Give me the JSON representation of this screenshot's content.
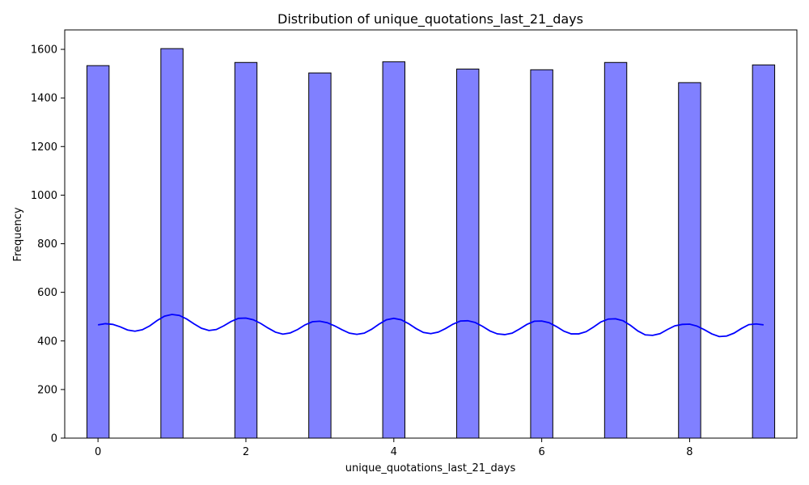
{
  "chart_data": {
    "type": "bar",
    "title": "Distribution of unique_quotations_last_21_days",
    "xlabel": "unique_quotations_last_21_days",
    "ylabel": "Frequency",
    "xlim": [
      -0.45,
      9.45
    ],
    "ylim": [
      0,
      1680
    ],
    "x_ticks": [
      0,
      2,
      4,
      6,
      8
    ],
    "y_ticks": [
      0,
      200,
      400,
      600,
      800,
      1000,
      1200,
      1400,
      1600
    ],
    "bar_width": 0.3,
    "bars": [
      {
        "x": 0,
        "value": 1533
      },
      {
        "x": 1,
        "value": 1603
      },
      {
        "x": 2,
        "value": 1546
      },
      {
        "x": 3,
        "value": 1503
      },
      {
        "x": 4,
        "value": 1549
      },
      {
        "x": 5,
        "value": 1519
      },
      {
        "x": 6,
        "value": 1516
      },
      {
        "x": 7,
        "value": 1546
      },
      {
        "x": 8,
        "value": 1463
      },
      {
        "x": 9,
        "value": 1536
      }
    ],
    "kde": {
      "x": [
        0,
        0.1,
        0.2,
        0.3,
        0.4,
        0.5,
        0.6,
        0.7,
        0.8,
        0.9,
        1.0,
        1.1,
        1.2,
        1.3,
        1.4,
        1.5,
        1.6,
        1.7,
        1.8,
        1.9,
        2.0,
        2.1,
        2.2,
        2.3,
        2.4,
        2.5,
        2.6,
        2.7,
        2.8,
        2.9,
        3.0,
        3.1,
        3.2,
        3.3,
        3.4,
        3.5,
        3.6,
        3.7,
        3.8,
        3.9,
        4.0,
        4.1,
        4.2,
        4.3,
        4.4,
        4.5,
        4.6,
        4.7,
        4.8,
        4.9,
        5.0,
        5.1,
        5.2,
        5.3,
        5.4,
        5.5,
        5.6,
        5.7,
        5.8,
        5.9,
        6.0,
        6.1,
        6.2,
        6.3,
        6.4,
        6.5,
        6.6,
        6.7,
        6.8,
        6.9,
        7.0,
        7.1,
        7.2,
        7.3,
        7.4,
        7.5,
        7.6,
        7.7,
        7.8,
        7.9,
        8.0,
        8.1,
        8.2,
        8.3,
        8.4,
        8.5,
        8.6,
        8.7,
        8.8,
        8.9,
        9.0
      ],
      "y": [
        466,
        471,
        468,
        458,
        445,
        440,
        446,
        462,
        484,
        502,
        509,
        505,
        490,
        470,
        452,
        443,
        447,
        462,
        480,
        493,
        494,
        487,
        472,
        453,
        436,
        428,
        433,
        447,
        466,
        479,
        481,
        475,
        462,
        446,
        432,
        427,
        432,
        448,
        469,
        487,
        493,
        487,
        471,
        451,
        435,
        430,
        436,
        451,
        469,
        482,
        483,
        476,
        460,
        441,
        429,
        426,
        432,
        449,
        468,
        481,
        482,
        475,
        459,
        440,
        429,
        429,
        438,
        457,
        478,
        490,
        491,
        483,
        464,
        441,
        425,
        423,
        430,
        447,
        462,
        468,
        469,
        461,
        446,
        429,
        418,
        420,
        432,
        451,
        467,
        470,
        466
      ]
    },
    "colors": {
      "bar_fill": "#8080ff",
      "bar_edge": "#000000",
      "kde_line": "#0000ff"
    },
    "grid": false,
    "legend": "none"
  }
}
